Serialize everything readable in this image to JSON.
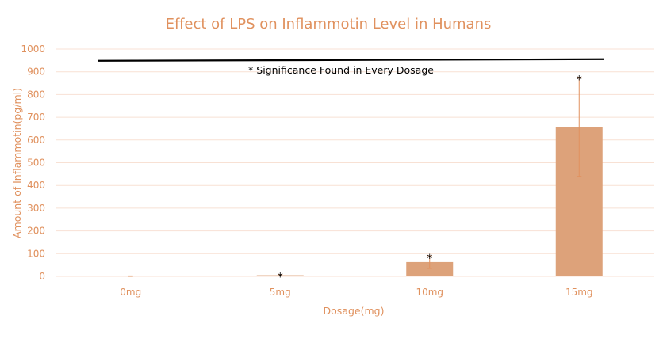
{
  "chart_data": {
    "type": "bar",
    "title": "Effect of LPS on Inflammotin Level in Humans",
    "xlabel": "Dosage(mg)",
    "ylabel": "Amount of Inflammotin(pg/ml)",
    "ylim": [
      0,
      1000
    ],
    "yticks": [
      0,
      100,
      200,
      300,
      400,
      500,
      600,
      700,
      800,
      900,
      1000
    ],
    "grid": true,
    "categories": [
      "0mg",
      "5mg",
      "10mg",
      "15mg"
    ],
    "values": [
      1,
      5,
      63,
      658
    ],
    "error": [
      1,
      3,
      28,
      218
    ],
    "significance_markers": [
      "",
      "*",
      "*",
      "*"
    ],
    "annotation": "* Significance Found in Every Dosage",
    "significance_line_value": 952,
    "colors": {
      "bar": "#dda27a",
      "error": "#e0915e",
      "text": "#e0915e",
      "grid": "#f8e1d4",
      "line": "#000000"
    }
  }
}
